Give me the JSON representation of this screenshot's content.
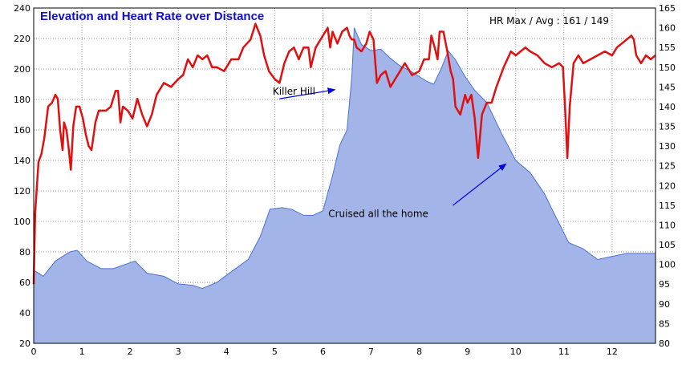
{
  "chart_data": {
    "type": "line",
    "title": "Elevation and Heart Rate over Distance",
    "stat_text": "HR Max / Avg : 161 / 149",
    "grid": true,
    "x_axis": {
      "range": [
        0,
        12.9
      ],
      "ticks": [
        "0",
        "1",
        "2",
        "3",
        "4",
        "5",
        "6",
        "7",
        "8",
        "9",
        "10",
        "11",
        "12"
      ]
    },
    "y_left": {
      "range": [
        20,
        240
      ],
      "ticks": [
        "20",
        "40",
        "60",
        "80",
        "100",
        "120",
        "140",
        "160",
        "180",
        "200",
        "220",
        "240"
      ]
    },
    "y_right": {
      "range": [
        80,
        165
      ],
      "ticks": [
        "80",
        "85",
        "90",
        "95",
        "100",
        "105",
        "110",
        "115",
        "120",
        "125",
        "130",
        "135",
        "140",
        "145",
        "150",
        "155",
        "160",
        "165"
      ]
    },
    "colors": {
      "elevation_fill": "#a3b5e8",
      "elevation_line": "#4a72d4",
      "heart_rate": "#e01010",
      "annotation": "#0000e0",
      "grid": "#999999"
    },
    "series": [
      {
        "axis": "left",
        "style": "area",
        "points": [
          [
            0,
            68
          ],
          [
            0.2,
            64
          ],
          [
            0.45,
            74
          ],
          [
            0.75,
            80
          ],
          [
            0.9,
            81
          ],
          [
            1.1,
            74
          ],
          [
            1.4,
            69
          ],
          [
            1.65,
            69
          ],
          [
            2.1,
            74
          ],
          [
            2.35,
            66
          ],
          [
            2.7,
            64
          ],
          [
            3.0,
            59
          ],
          [
            3.3,
            58
          ],
          [
            3.5,
            56
          ],
          [
            3.8,
            60
          ],
          [
            4.1,
            67
          ],
          [
            4.45,
            75
          ],
          [
            4.7,
            90
          ],
          [
            4.9,
            108
          ],
          [
            5.15,
            109
          ],
          [
            5.35,
            108
          ],
          [
            5.6,
            104
          ],
          [
            5.8,
            104
          ],
          [
            6.0,
            107
          ],
          [
            6.2,
            130
          ],
          [
            6.35,
            150
          ],
          [
            6.5,
            160
          ],
          [
            6.6,
            195
          ],
          [
            6.65,
            227
          ],
          [
            6.8,
            216
          ],
          [
            7.0,
            212
          ],
          [
            7.2,
            213
          ],
          [
            7.4,
            207
          ],
          [
            7.6,
            202
          ],
          [
            7.8,
            199
          ],
          [
            8.0,
            195
          ],
          [
            8.15,
            192
          ],
          [
            8.3,
            190
          ],
          [
            8.45,
            200
          ],
          [
            8.6,
            212
          ],
          [
            8.75,
            206
          ],
          [
            8.95,
            195
          ],
          [
            9.15,
            186
          ],
          [
            9.4,
            178
          ],
          [
            9.7,
            158
          ],
          [
            10.0,
            140
          ],
          [
            10.3,
            132
          ],
          [
            10.6,
            118
          ],
          [
            10.8,
            105
          ],
          [
            11.1,
            86
          ],
          [
            11.4,
            82
          ],
          [
            11.7,
            75
          ],
          [
            12.3,
            79
          ],
          [
            12.9,
            79
          ]
        ]
      },
      {
        "axis": "right",
        "style": "line",
        "points": [
          [
            0,
            95
          ],
          [
            0.03,
            113
          ],
          [
            0.1,
            126
          ],
          [
            0.16,
            128
          ],
          [
            0.22,
            132
          ],
          [
            0.3,
            140
          ],
          [
            0.38,
            141
          ],
          [
            0.45,
            143
          ],
          [
            0.5,
            142
          ],
          [
            0.55,
            134
          ],
          [
            0.6,
            129
          ],
          [
            0.63,
            136
          ],
          [
            0.68,
            134
          ],
          [
            0.72,
            130
          ],
          [
            0.77,
            124
          ],
          [
            0.82,
            135
          ],
          [
            0.88,
            140
          ],
          [
            0.95,
            140
          ],
          [
            1.02,
            137
          ],
          [
            1.08,
            133
          ],
          [
            1.14,
            130
          ],
          [
            1.2,
            129
          ],
          [
            1.28,
            136
          ],
          [
            1.35,
            139
          ],
          [
            1.5,
            139
          ],
          [
            1.6,
            140
          ],
          [
            1.7,
            144
          ],
          [
            1.75,
            144
          ],
          [
            1.8,
            136
          ],
          [
            1.85,
            140
          ],
          [
            1.95,
            139
          ],
          [
            2.05,
            137
          ],
          [
            2.15,
            142
          ],
          [
            2.25,
            138
          ],
          [
            2.35,
            135
          ],
          [
            2.45,
            138
          ],
          [
            2.55,
            143
          ],
          [
            2.7,
            146
          ],
          [
            2.85,
            145
          ],
          [
            3.0,
            147
          ],
          [
            3.1,
            148
          ],
          [
            3.2,
            152
          ],
          [
            3.3,
            150
          ],
          [
            3.4,
            153
          ],
          [
            3.5,
            152
          ],
          [
            3.6,
            153
          ],
          [
            3.7,
            150
          ],
          [
            3.8,
            150
          ],
          [
            3.95,
            149
          ],
          [
            4.1,
            152
          ],
          [
            4.25,
            152
          ],
          [
            4.35,
            155
          ],
          [
            4.5,
            157
          ],
          [
            4.6,
            161
          ],
          [
            4.7,
            158
          ],
          [
            4.78,
            153
          ],
          [
            4.88,
            149
          ],
          [
            5.0,
            147
          ],
          [
            5.1,
            146
          ],
          [
            5.2,
            151
          ],
          [
            5.3,
            154
          ],
          [
            5.4,
            155
          ],
          [
            5.5,
            152
          ],
          [
            5.6,
            155
          ],
          [
            5.7,
            155
          ],
          [
            5.75,
            150
          ],
          [
            5.85,
            155
          ],
          [
            6.0,
            158
          ],
          [
            6.1,
            160
          ],
          [
            6.15,
            155
          ],
          [
            6.2,
            159
          ],
          [
            6.3,
            156
          ],
          [
            6.4,
            159
          ],
          [
            6.5,
            160
          ],
          [
            6.55,
            158
          ],
          [
            6.6,
            157
          ],
          [
            6.65,
            157
          ],
          [
            6.7,
            155
          ],
          [
            6.8,
            154
          ],
          [
            6.9,
            156
          ],
          [
            6.97,
            159
          ],
          [
            7.05,
            157
          ],
          [
            7.12,
            146
          ],
          [
            7.2,
            148
          ],
          [
            7.3,
            149
          ],
          [
            7.4,
            145
          ],
          [
            7.5,
            147
          ],
          [
            7.6,
            149
          ],
          [
            7.7,
            151
          ],
          [
            7.85,
            148
          ],
          [
            8.0,
            149
          ],
          [
            8.1,
            152
          ],
          [
            8.2,
            152
          ],
          [
            8.25,
            158
          ],
          [
            8.32,
            155
          ],
          [
            8.38,
            152
          ],
          [
            8.42,
            159
          ],
          [
            8.5,
            159
          ],
          [
            8.58,
            154
          ],
          [
            8.65,
            149
          ],
          [
            8.7,
            147
          ],
          [
            8.75,
            140
          ],
          [
            8.85,
            138
          ],
          [
            8.95,
            143
          ],
          [
            9.0,
            141
          ],
          [
            9.08,
            143
          ],
          [
            9.15,
            137
          ],
          [
            9.22,
            127
          ],
          [
            9.3,
            138
          ],
          [
            9.4,
            141
          ],
          [
            9.5,
            141
          ],
          [
            9.6,
            145
          ],
          [
            9.75,
            150
          ],
          [
            9.9,
            154
          ],
          [
            10.0,
            153
          ],
          [
            10.1,
            154
          ],
          [
            10.2,
            155
          ],
          [
            10.3,
            154
          ],
          [
            10.45,
            153
          ],
          [
            10.6,
            151
          ],
          [
            10.75,
            150
          ],
          [
            10.9,
            151
          ],
          [
            10.98,
            150
          ],
          [
            11.03,
            138
          ],
          [
            11.07,
            127
          ],
          [
            11.12,
            140
          ],
          [
            11.2,
            151
          ],
          [
            11.3,
            153
          ],
          [
            11.4,
            151
          ],
          [
            11.55,
            152
          ],
          [
            11.7,
            153
          ],
          [
            11.85,
            154
          ],
          [
            12.0,
            153
          ],
          [
            12.1,
            155
          ],
          [
            12.2,
            156
          ],
          [
            12.3,
            157
          ],
          [
            12.4,
            158
          ],
          [
            12.45,
            157
          ],
          [
            12.5,
            153
          ],
          [
            12.6,
            151
          ],
          [
            12.7,
            153
          ],
          [
            12.8,
            152
          ],
          [
            12.9,
            153
          ]
        ]
      }
    ],
    "annotations": [
      {
        "text": "Killer Hill",
        "anchor": [
          5.4,
          143
        ],
        "arrow_from": [
          5.1,
          142
        ],
        "arrow_to": [
          6.25,
          144.3
        ],
        "axis": "right"
      },
      {
        "text": "Cruised all the home",
        "anchor": [
          7.15,
          112
        ],
        "arrow_from": [
          8.7,
          115
        ],
        "arrow_to": [
          9.8,
          125.5
        ],
        "axis": "right"
      }
    ]
  }
}
